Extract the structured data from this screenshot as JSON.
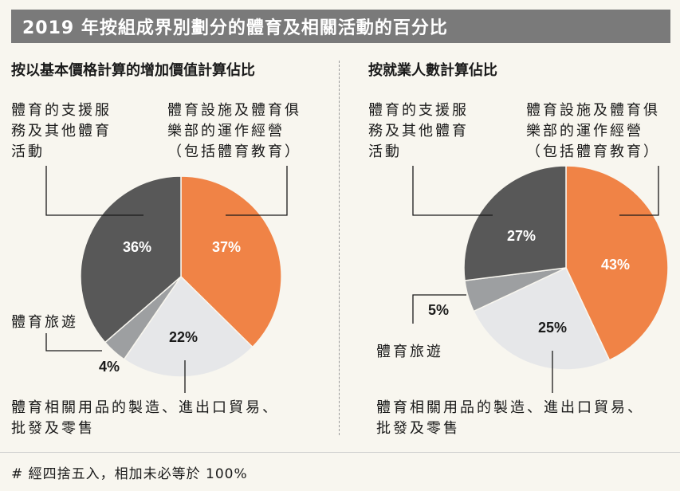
{
  "header": {
    "title": "2019 年按組成界別劃分的體育及相關活動的百分比"
  },
  "footnote": "# 經四捨五入，相加未必等於 100%",
  "colors": {
    "clubs": "#f08346",
    "goods": "#e6e7e9",
    "tourism": "#9d9fa1",
    "support": "#585858"
  },
  "chart_data": [
    {
      "type": "pie",
      "title": "按以基本價格計算的增加價值計算佔比",
      "categories": [
        "體育設施及體育俱樂部的運作經營（包括體育教育）",
        "體育相關用品的製造、進出口貿易、批發及零售",
        "體育旅遊",
        "體育的支援服務及其他體育活動"
      ],
      "values": [
        37,
        22,
        4,
        36
      ],
      "value_labels": [
        "37%",
        "22%",
        "4%",
        "36%"
      ],
      "label_lines": [
        [
          "體育設施及體育俱",
          "樂部的運作經營",
          "（包括體育教育）"
        ],
        [
          "體育相關用品的製造、進出口貿易、",
          "批發及零售"
        ],
        [
          "體育旅遊"
        ],
        [
          "體育的支援服",
          "務及其他體育",
          "活動"
        ]
      ]
    },
    {
      "type": "pie",
      "title": "按就業人數計算佔比",
      "categories": [
        "體育設施及體育俱樂部的運作經營（包括體育教育）",
        "體育相關用品的製造、進出口貿易、批發及零售",
        "體育旅遊",
        "體育的支援服務及其他體育活動"
      ],
      "values": [
        43,
        25,
        5,
        27
      ],
      "value_labels": [
        "43%",
        "25%",
        "5%",
        "27%"
      ],
      "label_lines": [
        [
          "體育設施及體育俱",
          "樂部的運作經營",
          "（包括體育教育）"
        ],
        [
          "體育相關用品的製造、進出口貿易、",
          "批發及零售"
        ],
        [
          "體育旅遊"
        ],
        [
          "體育的支援服",
          "務及其他體育",
          "活動"
        ]
      ]
    }
  ]
}
